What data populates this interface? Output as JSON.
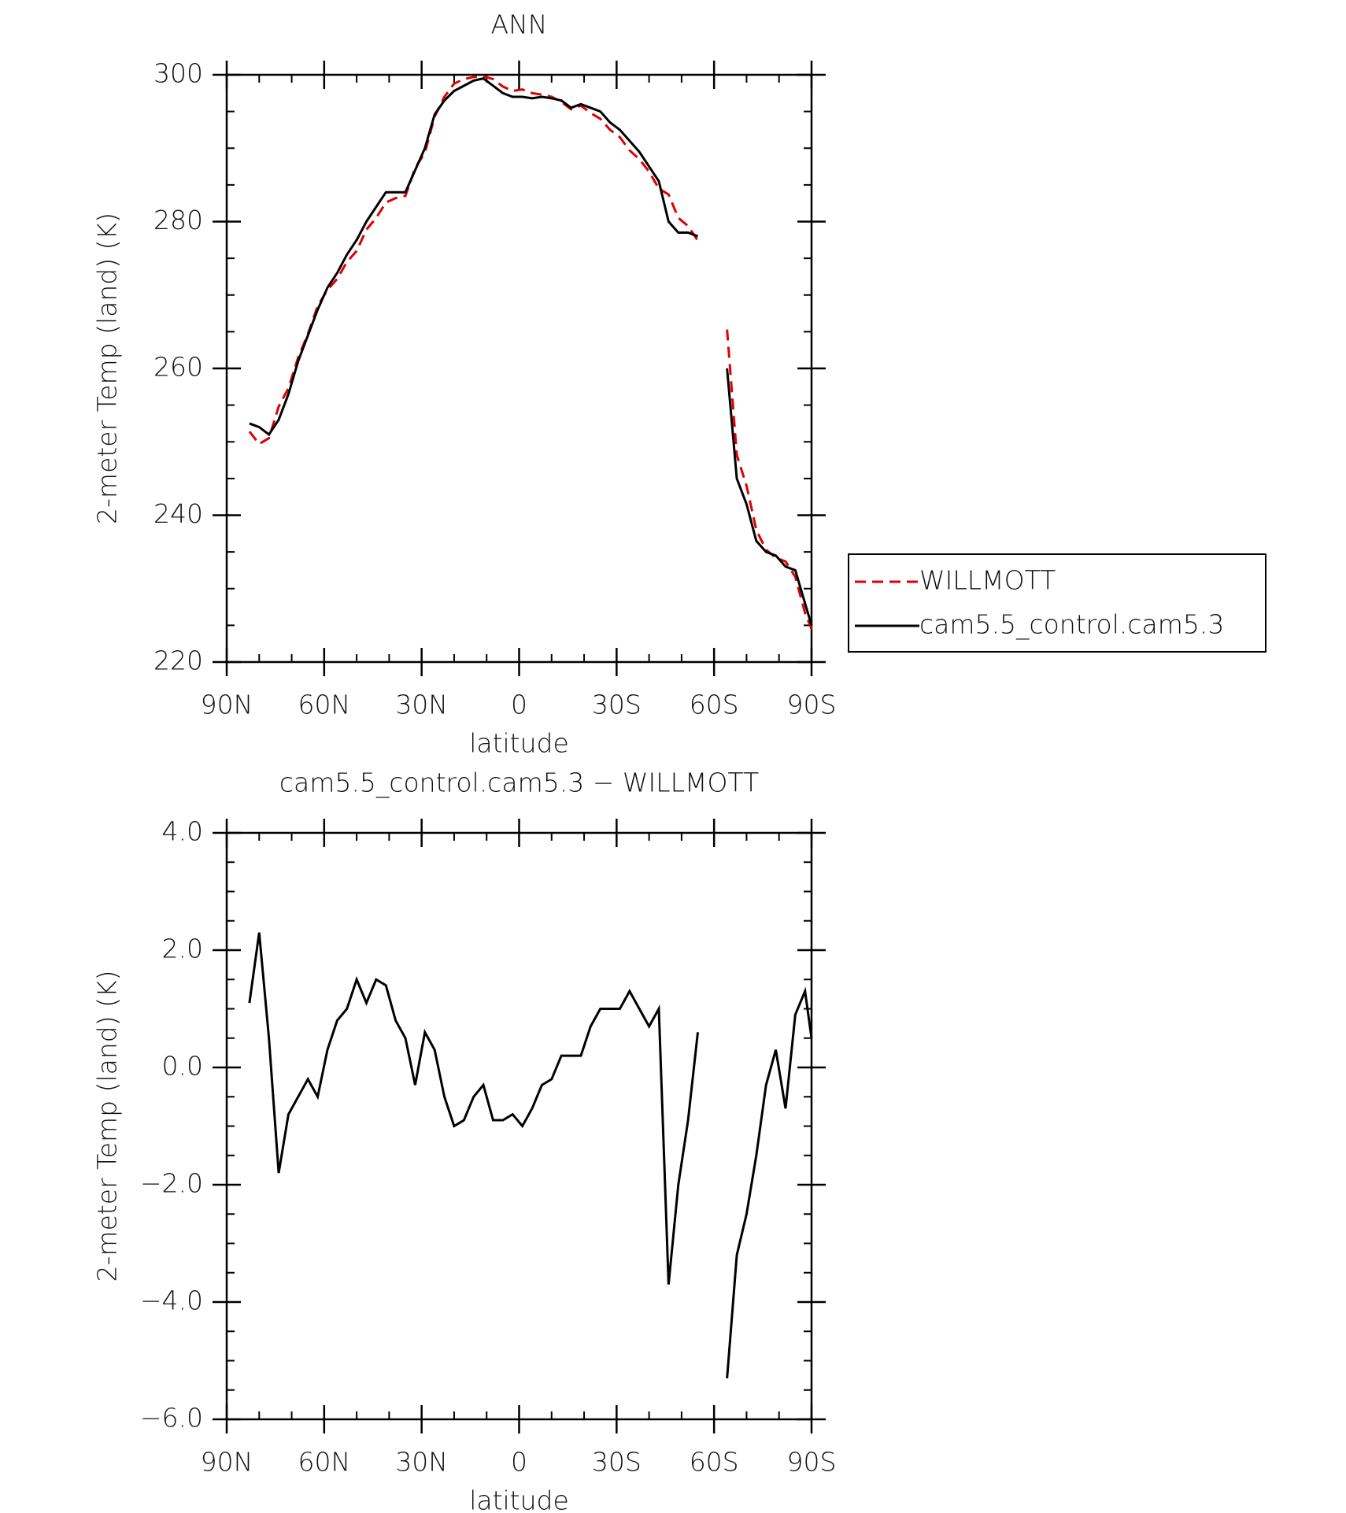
{
  "chart_data": [
    {
      "type": "line",
      "title": "ANN",
      "x_label": "latitude",
      "y_label": "2-meter Temp (land) (K)",
      "x": [
        83,
        80,
        77,
        74,
        71,
        68,
        65,
        62,
        59,
        56,
        53,
        50,
        47,
        44,
        41,
        38,
        35,
        32,
        29,
        26,
        23,
        20,
        17,
        14,
        11,
        8,
        5,
        2,
        -1,
        -4,
        -7,
        -10,
        -13,
        -16,
        -19,
        -22,
        -25,
        -28,
        -31,
        -34,
        -37,
        -40,
        -43,
        -46,
        -49,
        -52,
        -55,
        -60,
        -64,
        -67,
        -70,
        -73,
        -76,
        -79,
        -82,
        -85,
        -88,
        -90
      ],
      "series": [
        {
          "name": "WILLMOTT",
          "color": "#e00000",
          "dashed": true,
          "values": [
            251.4,
            249.7,
            250.5,
            254.8,
            257.3,
            261.5,
            264.7,
            268.5,
            270.7,
            272.2,
            274.5,
            276.0,
            278.9,
            280.5,
            282.6,
            283.2,
            283.5,
            287.3,
            289.4,
            294.3,
            297.0,
            298.8,
            299.4,
            299.7,
            299.8,
            299.4,
            298.4,
            297.8,
            298.0,
            297.5,
            297.3,
            297.0,
            296.3,
            295.3,
            295.8,
            294.8,
            294.0,
            292.5,
            291.5,
            289.7,
            288.5,
            286.8,
            284.5,
            283.7,
            280.5,
            279.4,
            277.4,
            null,
            265.3,
            248.2,
            244.0,
            238.0,
            235.3,
            234.2,
            233.7,
            231.6,
            226.7,
            224.5
          ]
        },
        {
          "name": "cam5.5_control.cam5.3",
          "color": "#000000",
          "dashed": false,
          "values": [
            252.5,
            252.0,
            251.0,
            253.0,
            256.5,
            261.0,
            264.5,
            268.0,
            271.0,
            273.0,
            275.5,
            277.5,
            280.0,
            282.0,
            284.0,
            284.0,
            284.0,
            287.0,
            290.0,
            294.6,
            296.5,
            297.8,
            298.5,
            299.2,
            299.5,
            298.5,
            297.5,
            297.0,
            297.0,
            296.8,
            297.0,
            296.8,
            296.5,
            295.5,
            296.0,
            295.5,
            295.0,
            293.5,
            292.5,
            291.0,
            289.5,
            287.5,
            285.5,
            280.0,
            278.5,
            278.5,
            278.0,
            null,
            260.0,
            245.0,
            241.5,
            236.5,
            235.0,
            234.5,
            233.0,
            232.5,
            228.0,
            225.0
          ]
        }
      ],
      "xlim": [
        90,
        -90
      ],
      "xticks": [
        {
          "value": 90,
          "label": "90N"
        },
        {
          "value": 60,
          "label": "60N"
        },
        {
          "value": 30,
          "label": "30N"
        },
        0,
        {
          "value": -30,
          "label": "30S"
        },
        {
          "value": -60,
          "label": "60S"
        },
        {
          "value": -90,
          "label": "90S"
        }
      ],
      "ylim": [
        220,
        300
      ],
      "yticks": [
        220,
        240,
        260,
        280,
        300
      ],
      "legend": "right"
    },
    {
      "type": "line",
      "title": "cam5.5_control.cam5.3 − WILLMOTT",
      "x_label": "latitude",
      "y_label": "2-meter Temp (land) (K)",
      "x": [
        83,
        80,
        77,
        74,
        71,
        68,
        65,
        62,
        59,
        56,
        53,
        50,
        47,
        44,
        41,
        38,
        35,
        32,
        29,
        26,
        23,
        20,
        17,
        14,
        11,
        8,
        5,
        2,
        -1,
        -4,
        -7,
        -10,
        -13,
        -16,
        -19,
        -22,
        -25,
        -28,
        -31,
        -34,
        -37,
        -40,
        -43,
        -46,
        -49,
        -52,
        -55,
        -60,
        -64,
        -67,
        -70,
        -73,
        -76,
        -79,
        -82,
        -85,
        -88,
        -90
      ],
      "color": "#000000",
      "values": [
        1.1,
        2.3,
        0.5,
        -1.8,
        -0.8,
        -0.5,
        -0.2,
        -0.5,
        0.3,
        0.8,
        1.0,
        1.5,
        1.1,
        1.5,
        1.4,
        0.8,
        0.5,
        -0.3,
        0.6,
        0.3,
        -0.5,
        -1.0,
        -0.9,
        -0.5,
        -0.3,
        -0.9,
        -0.9,
        -0.8,
        -1.0,
        -0.7,
        -0.3,
        -0.2,
        0.2,
        0.2,
        0.2,
        0.7,
        1.0,
        1.0,
        1.0,
        1.3,
        1.0,
        0.7,
        1.0,
        -3.7,
        -2.0,
        -0.9,
        0.6,
        null,
        -5.3,
        -3.2,
        -2.5,
        -1.5,
        -0.3,
        0.3,
        -0.7,
        0.9,
        1.3,
        0.5
      ],
      "xlim": [
        90,
        -90
      ],
      "xticks": [
        {
          "value": 90,
          "label": "90N"
        },
        {
          "value": 60,
          "label": "60N"
        },
        {
          "value": 30,
          "label": "30N"
        },
        0,
        {
          "value": -30,
          "label": "30S"
        },
        {
          "value": -60,
          "label": "60S"
        },
        {
          "value": -90,
          "label": "90S"
        }
      ],
      "ylim": [
        -6,
        4
      ],
      "yticks": [
        {
          "value": -6,
          "label": "−6.0"
        },
        {
          "value": -4,
          "label": "−4.0"
        },
        {
          "value": -2,
          "label": "−2.0"
        },
        {
          "value": 0,
          "label": "0.0"
        },
        {
          "value": 2,
          "label": "2.0"
        },
        {
          "value": 4,
          "label": "4.0"
        }
      ]
    }
  ]
}
